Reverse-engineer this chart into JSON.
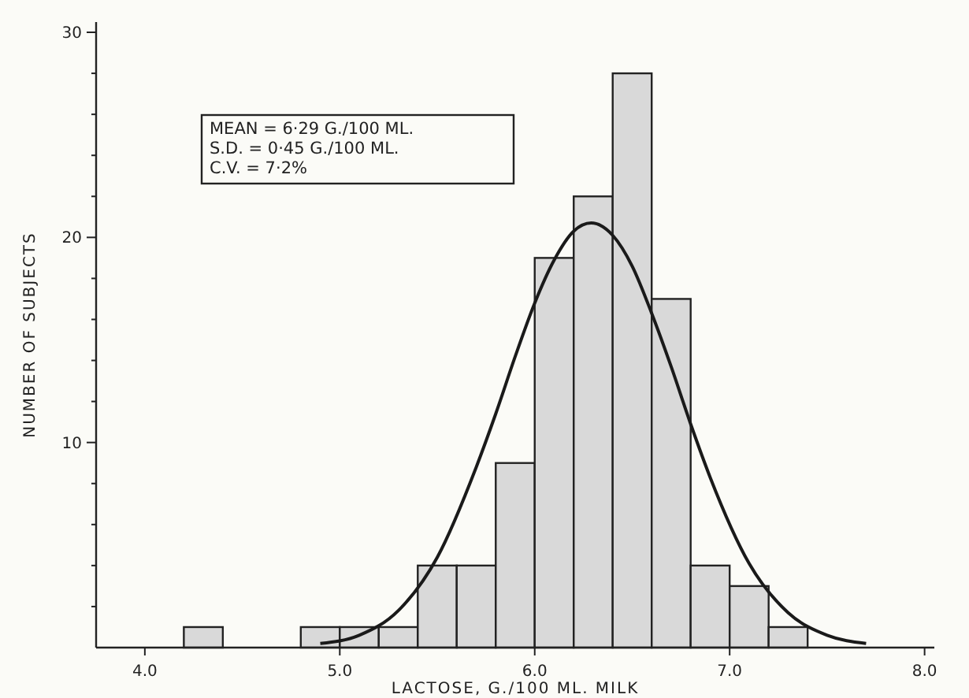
{
  "chart_data": {
    "type": "histogram",
    "xlabel": "LACTOSE, G./100 ML. MILK",
    "ylabel": "NUMBER OF SUBJECTS",
    "bins": [
      4.2,
      4.4,
      4.6,
      4.8,
      5.0,
      5.2,
      5.4,
      5.6,
      5.8,
      6.0,
      6.2,
      6.4,
      6.6,
      6.8,
      7.0,
      7.2,
      7.4
    ],
    "values": [
      1,
      0,
      0,
      1,
      1,
      1,
      4,
      4,
      9,
      19,
      22,
      28,
      17,
      4,
      3,
      1
    ],
    "color": "#d9d9d9",
    "series": [
      {
        "type": "line",
        "color": "#1a1a1a",
        "x": [
          4.9,
          5.1,
          5.3,
          5.5,
          5.7,
          5.8,
          5.9,
          6.0,
          6.1,
          6.2,
          6.29,
          6.4,
          6.5,
          6.6,
          6.7,
          6.8,
          6.9,
          7.1,
          7.3,
          7.5,
          7.7
        ],
        "values": [
          0.2,
          0.6,
          1.8,
          4.4,
          8.8,
          11.4,
          14.2,
          16.8,
          18.9,
          20.3,
          20.7,
          20.1,
          18.6,
          16.3,
          13.7,
          10.9,
          8.3,
          4.1,
          1.7,
          0.6,
          0.2
        ]
      }
    ],
    "xlim": [
      3.75,
      8.05
    ],
    "ylim": [
      0,
      30.5
    ],
    "xticks": [
      {
        "value": 4,
        "label": "4.0"
      },
      {
        "value": 5,
        "label": "5.0"
      },
      {
        "value": 6,
        "label": "6.0"
      },
      {
        "value": 7,
        "label": "7.0"
      },
      {
        "value": 8,
        "label": "8.0"
      }
    ],
    "yticks": [
      {
        "value": 2,
        "label": null
      },
      {
        "value": 4,
        "label": null
      },
      {
        "value": 6,
        "label": null
      },
      {
        "value": 8,
        "label": null
      },
      10,
      {
        "value": 12,
        "label": null
      },
      {
        "value": 14,
        "label": null
      },
      {
        "value": 16,
        "label": null
      },
      {
        "value": 18,
        "label": null
      },
      20,
      {
        "value": 22,
        "label": null
      },
      {
        "value": 24,
        "label": null
      },
      {
        "value": 26,
        "label": null
      },
      {
        "value": 28,
        "label": null
      },
      30
    ],
    "annotations": [
      "MEAN = 6·29 G./100 ML.",
      "S.D. = 0·45 G./100 ML.",
      "C.V. = 7·2%"
    ],
    "grid": false
  }
}
